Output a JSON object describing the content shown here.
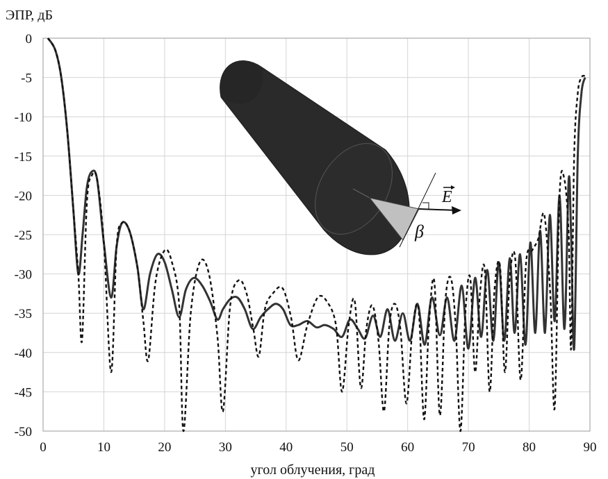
{
  "chart_data": {
    "type": "line",
    "ylabel": "ЭПР, дБ",
    "xlabel": "угол облучения, град",
    "xlim": [
      0,
      90
    ],
    "ylim": [
      -50,
      0
    ],
    "xticks": [
      "0",
      "10",
      "20",
      "30",
      "40",
      "50",
      "60",
      "70",
      "80",
      "90"
    ],
    "yticks": [
      "0",
      "-5",
      "-10",
      "-15",
      "-20",
      "-25",
      "-30",
      "-35",
      "-40",
      "-45",
      "-50"
    ],
    "grid": true,
    "series": [
      {
        "style": "solid",
        "color": "#333333",
        "x": [
          0.8,
          2,
          3,
          4,
          5,
          5.8,
          6.5,
          7.2,
          8,
          8.9,
          10,
          11.2,
          12.1,
          13,
          14.2,
          15.5,
          16.5,
          17.6,
          18.8,
          20,
          21.2,
          22.4,
          23.5,
          24.8,
          26.2,
          27.5,
          28.7,
          29.6,
          30.8,
          32,
          33.2,
          34.5,
          35.8,
          37,
          38.3,
          39.5,
          40.7,
          42,
          43.5,
          45,
          46.4,
          47.8,
          49.2,
          50.5,
          51.8,
          53,
          54.3,
          55.5,
          56.7,
          57.9,
          59.2,
          60.4,
          61.6,
          62.8,
          64,
          65.3,
          66.5,
          67.7,
          68.9,
          70,
          71.1,
          72.1,
          73.1,
          74.1,
          75,
          75.9,
          76.8,
          77.6,
          78.5,
          79.4,
          80.2,
          81,
          81.8,
          82.6,
          83.4,
          84.2,
          85,
          85.8,
          86.5,
          86.9,
          87.4,
          88,
          88.6,
          89.2
        ],
        "y": [
          0,
          -1.5,
          -5,
          -12,
          -22,
          -30,
          -25,
          -19,
          -17,
          -18,
          -26,
          -33,
          -26.5,
          -23.5,
          -24.5,
          -29,
          -34.5,
          -30,
          -27.5,
          -28.5,
          -32,
          -35.5,
          -32,
          -30.5,
          -31.5,
          -33.5,
          -35.8,
          -34.5,
          -33.2,
          -33,
          -34.5,
          -37,
          -35.5,
          -34.5,
          -33.8,
          -34.5,
          -36.5,
          -36.5,
          -36,
          -36.8,
          -36.5,
          -37,
          -38,
          -35.8,
          -37,
          -38.2,
          -35.3,
          -38,
          -34.5,
          -38.5,
          -35,
          -38.5,
          -33.8,
          -39,
          -33,
          -37.8,
          -33,
          -38.5,
          -31.5,
          -39.5,
          -30.5,
          -38,
          -29.5,
          -38.5,
          -28.5,
          -38.5,
          -28,
          -37.5,
          -27.5,
          -39,
          -26,
          -37.5,
          -24.5,
          -37.5,
          -22.5,
          -36,
          -20,
          -37,
          -18,
          -25,
          -39.5,
          -15,
          -7,
          -5
        ]
      },
      {
        "style": "dashed",
        "color": "#111111",
        "x": [
          0.8,
          2,
          3,
          4,
          5,
          5.8,
          6.4,
          7.2,
          8,
          8.9,
          10,
          11.2,
          12.1,
          13,
          14.2,
          15.5,
          16.5,
          17.3,
          18.5,
          20,
          21.2,
          22.4,
          23.1,
          24.3,
          25.8,
          27.3,
          28.7,
          29.6,
          30.8,
          32.2,
          33.5,
          34.6,
          35.5,
          36.5,
          37.8,
          39.4,
          40.8,
          42,
          43.5,
          45.2,
          46.7,
          48.2,
          49.2,
          50.3,
          51.3,
          52.3,
          53.2,
          54.2,
          55.2,
          56.1,
          57,
          57.9,
          58.8,
          59.8,
          60.8,
          61.8,
          62.7,
          63.5,
          64.4,
          65.3,
          66.2,
          67.1,
          67.9,
          68.7,
          69.5,
          70.3,
          71.1,
          71.9,
          72.7,
          73.5,
          74.3,
          75.2,
          76,
          76.8,
          77.7,
          78.6,
          79.5,
          80.5,
          81.5,
          82.5,
          83.5,
          84.2,
          85,
          85.8,
          86.5,
          86.9,
          87.4,
          88,
          88.6,
          89.2
        ],
        "y": [
          0,
          -1.5,
          -5,
          -12,
          -22,
          -30,
          -38.5,
          -21,
          -17.5,
          -18,
          -26,
          -42.5,
          -26.5,
          -23.5,
          -24.5,
          -29,
          -36,
          -41,
          -31,
          -27,
          -28.5,
          -34,
          -50,
          -35,
          -28.5,
          -30,
          -38,
          -47.5,
          -34,
          -30.8,
          -32.5,
          -37,
          -40.5,
          -34.5,
          -32.5,
          -31.8,
          -35.5,
          -41,
          -36.5,
          -33,
          -33.5,
          -36.5,
          -45,
          -36.5,
          -33.5,
          -44.5,
          -37,
          -34,
          -38.5,
          -47.5,
          -36.5,
          -33.8,
          -37,
          -46.5,
          -37,
          -34.5,
          -48.5,
          -36.5,
          -31,
          -48,
          -33.5,
          -30.5,
          -36.5,
          -50,
          -35,
          -30.5,
          -42.5,
          -32.5,
          -29.5,
          -45,
          -32,
          -29,
          -42.5,
          -30.5,
          -28,
          -43.5,
          -28.5,
          -27,
          -25.5,
          -22.5,
          -33,
          -47,
          -20,
          -18,
          -25,
          -39.5,
          -15,
          -7,
          -5,
          -4.8
        ]
      }
    ]
  },
  "inset": {
    "vector_label": "E",
    "angle_label": "β",
    "body_color": "#2a2a2a",
    "sector_color": "#c0c0c0"
  }
}
